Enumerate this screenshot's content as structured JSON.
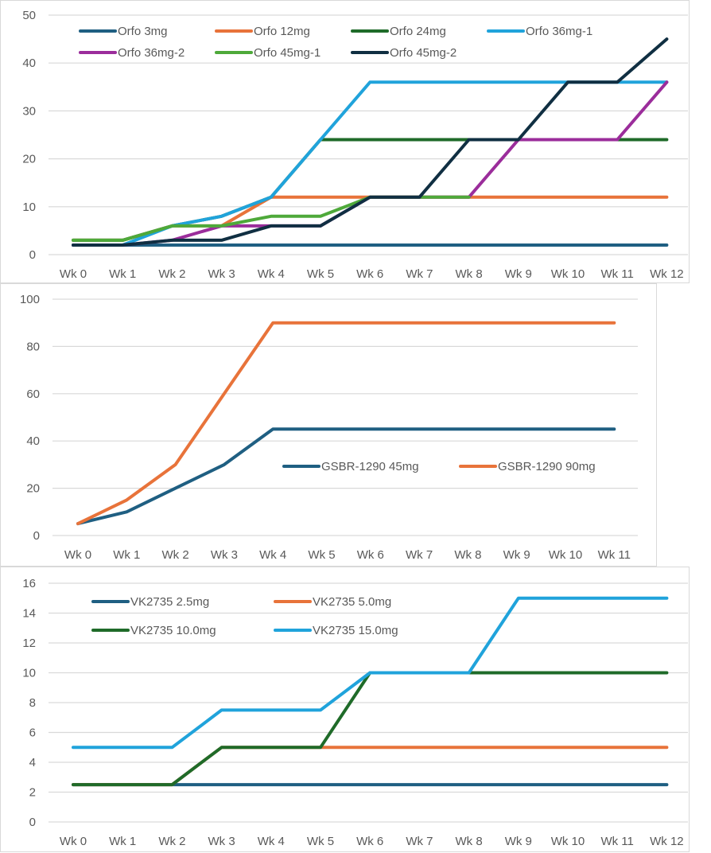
{
  "chart_data": [
    {
      "type": "line",
      "categories": [
        "Wk 0",
        "Wk 1",
        "Wk 2",
        "Wk 3",
        "Wk 4",
        "Wk 5",
        "Wk 6",
        "Wk 7",
        "Wk 8",
        "Wk 9",
        "Wk 10",
        "Wk 11",
        "Wk 12"
      ],
      "ylim": [
        0,
        50
      ],
      "yticks": [
        0,
        10,
        20,
        30,
        40,
        50
      ],
      "grid": true,
      "legend_position": "top",
      "series": [
        {
          "name": "Orfo 3mg",
          "color": "#1f5f82",
          "values": [
            2,
            2,
            2,
            2,
            2,
            2,
            2,
            2,
            2,
            2,
            2,
            2,
            2
          ]
        },
        {
          "name": "Orfo 12mg",
          "color": "#e8733a",
          "values": [
            3,
            3,
            6,
            6,
            12,
            12,
            12,
            12,
            12,
            12,
            12,
            12,
            12
          ]
        },
        {
          "name": "Orfo 24mg",
          "color": "#1f6b29",
          "values": [
            3,
            3,
            6,
            8,
            12,
            24,
            24,
            24,
            24,
            24,
            24,
            24,
            24
          ]
        },
        {
          "name": "Orfo 36mg-1",
          "color": "#20a3db",
          "values": [
            2,
            2,
            6,
            8,
            12,
            24,
            36,
            36,
            36,
            36,
            36,
            36,
            36
          ]
        },
        {
          "name": "Orfo 36mg-2",
          "color": "#9b2d9b",
          "values": [
            2,
            2,
            3,
            6,
            6,
            6,
            12,
            12,
            12,
            24,
            24,
            24,
            36
          ]
        },
        {
          "name": "Orfo 45mg-1",
          "color": "#4ea93a",
          "values": [
            3,
            3,
            6,
            6,
            8,
            8,
            12,
            12,
            12,
            null,
            null,
            null,
            null
          ]
        },
        {
          "name": "Orfo 45mg-2",
          "color": "#102f42",
          "values": [
            2,
            2,
            3,
            3,
            6,
            6,
            12,
            12,
            24,
            24,
            36,
            36,
            45
          ]
        }
      ]
    },
    {
      "type": "line",
      "categories": [
        "Wk 0",
        "Wk 1",
        "Wk 2",
        "Wk 3",
        "Wk 4",
        "Wk 5",
        "Wk 6",
        "Wk 7",
        "Wk 8",
        "Wk 9",
        "Wk 10",
        "Wk 11"
      ],
      "ylim": [
        0,
        100
      ],
      "yticks": [
        0,
        20,
        40,
        60,
        80,
        100
      ],
      "grid": true,
      "legend_position": "center-right",
      "series": [
        {
          "name": "GSBR-1290 45mg",
          "color": "#1f5f82",
          "values": [
            5,
            10,
            20,
            30,
            45,
            45,
            45,
            45,
            45,
            45,
            45,
            45
          ]
        },
        {
          "name": "GSBR-1290 90mg",
          "color": "#e8733a",
          "values": [
            5,
            15,
            30,
            60,
            90,
            90,
            90,
            90,
            90,
            90,
            90,
            90
          ]
        }
      ]
    },
    {
      "type": "line",
      "categories": [
        "Wk 0",
        "Wk 1",
        "Wk 2",
        "Wk 3",
        "Wk 4",
        "Wk 5",
        "Wk 6",
        "Wk 7",
        "Wk 8",
        "Wk 9",
        "Wk 10",
        "Wk 11",
        "Wk 12"
      ],
      "ylim": [
        0,
        16
      ],
      "yticks": [
        0,
        2,
        4,
        6,
        8,
        10,
        12,
        14,
        16
      ],
      "grid": true,
      "legend_position": "top-left",
      "series": [
        {
          "name": "VK2735 2.5mg",
          "color": "#1f5f82",
          "values": [
            2.5,
            2.5,
            2.5,
            2.5,
            2.5,
            2.5,
            2.5,
            2.5,
            2.5,
            2.5,
            2.5,
            2.5,
            2.5
          ]
        },
        {
          "name": "VK2735 5.0mg",
          "color": "#e8733a",
          "values": [
            2.5,
            2.5,
            2.5,
            5,
            5,
            5,
            5,
            5,
            5,
            5,
            5,
            5,
            5
          ]
        },
        {
          "name": "VK2735 10.0mg",
          "color": "#1f6b29",
          "values": [
            2.5,
            2.5,
            2.5,
            5,
            5,
            5,
            10,
            10,
            10,
            10,
            10,
            10,
            10
          ]
        },
        {
          "name": "VK2735 15.0mg",
          "color": "#20a3db",
          "values": [
            5,
            5,
            5,
            7.5,
            7.5,
            7.5,
            10,
            10,
            10,
            15,
            15,
            15,
            15
          ]
        }
      ]
    }
  ]
}
